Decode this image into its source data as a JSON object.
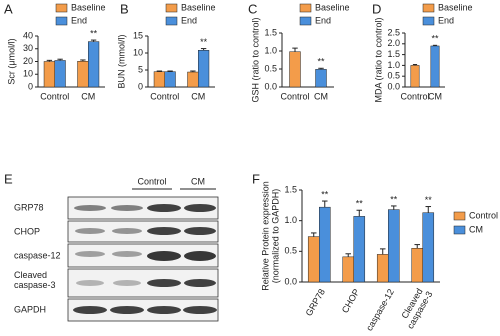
{
  "chart_data": [
    {
      "type": "bar",
      "panel": "A",
      "ylabel": "Scr (μmol/l)",
      "categories": [
        "Control",
        "CM"
      ],
      "series": [
        {
          "name": "Baseline",
          "color": "#f39c4a",
          "values": [
            20,
            20.2
          ],
          "errors": [
            0.9,
            1.0
          ]
        },
        {
          "name": "End",
          "color": "#4a8fdb",
          "values": [
            20.8,
            35.6
          ],
          "errors": [
            1.0,
            1.2
          ],
          "annotations": [
            null,
            "**"
          ]
        }
      ],
      "ylim": [
        0,
        40
      ],
      "yticks": [
        0,
        10,
        20,
        30,
        40
      ],
      "legend": "top"
    },
    {
      "type": "bar",
      "panel": "B",
      "ylabel": "BUN (mmol/l)",
      "categories": [
        "Control",
        "CM"
      ],
      "series": [
        {
          "name": "Baseline",
          "color": "#f39c4a",
          "values": [
            4.5,
            4.4
          ],
          "errors": [
            0.2,
            0.3
          ]
        },
        {
          "name": "End",
          "color": "#4a8fdb",
          "values": [
            4.5,
            10.8
          ],
          "errors": [
            0.2,
            0.5
          ],
          "annotations": [
            null,
            "**"
          ]
        }
      ],
      "ylim": [
        0,
        15
      ],
      "yticks": [
        0,
        5,
        10,
        15
      ],
      "legend": "top"
    },
    {
      "type": "bar",
      "panel": "C",
      "ylabel": "GSH (ratio to control)",
      "categories": [
        "Control",
        "CM"
      ],
      "series": [
        {
          "name": "Baseline",
          "color": "#f39c4a",
          "values": [
            0.98,
            null
          ],
          "errors": [
            0.1,
            null
          ]
        },
        {
          "name": "End",
          "color": "#4a8fdb",
          "values": [
            null,
            0.49
          ],
          "errors": [
            null,
            0.03
          ],
          "annotations": [
            null,
            "**"
          ]
        }
      ],
      "ylim": [
        0,
        1.5
      ],
      "yticks": [
        {
          "value": 0,
          "label": "0.0"
        },
        0.5,
        {
          "value": 1,
          "label": "1.0"
        },
        1.5
      ],
      "legend": "top"
    },
    {
      "type": "bar",
      "panel": "D",
      "ylabel": "MDA (ratio to control)",
      "categories": [
        "Control",
        "CM"
      ],
      "series": [
        {
          "name": "Baseline",
          "color": "#f39c4a",
          "values": [
            1.0,
            null
          ],
          "errors": [
            0.04,
            null
          ]
        },
        {
          "name": "End",
          "color": "#4a8fdb",
          "values": [
            null,
            1.9
          ],
          "errors": [
            null,
            0.03
          ],
          "annotations": [
            null,
            "**"
          ]
        }
      ],
      "ylim": [
        0,
        2.5
      ],
      "yticks": [
        {
          "value": 0,
          "label": "0.0"
        },
        0.5,
        {
          "value": 1,
          "label": "1.0"
        },
        1.5,
        {
          "value": 2,
          "label": "2.0"
        },
        2.5
      ],
      "legend": "top"
    },
    {
      "type": "bar",
      "panel": "F",
      "ylabel": [
        "Relative Protein expression",
        "(normalized to GAPDH)"
      ],
      "categories": [
        "GRP78",
        "CHOP",
        "caspase-12",
        "Cleaved caspase-3"
      ],
      "series": [
        {
          "name": "Control",
          "color": "#f39c4a",
          "values": [
            0.74,
            0.41,
            0.45,
            0.55
          ],
          "errors": [
            0.06,
            0.05,
            0.09,
            0.06
          ]
        },
        {
          "name": "CM",
          "color": "#4a8fdb",
          "values": [
            1.22,
            1.07,
            1.18,
            1.13
          ],
          "errors": [
            0.1,
            0.1,
            0.06,
            0.1
          ],
          "annotations": [
            "**",
            "**",
            "**",
            "**"
          ]
        }
      ],
      "ylim": [
        0,
        1.5
      ],
      "yticks": [
        {
          "value": 0,
          "label": "0.0"
        },
        0.5,
        {
          "value": 1,
          "label": "1.0"
        },
        1.5
      ],
      "legend": "right"
    }
  ],
  "blot": {
    "panel": "E",
    "lanes": [
      "Control",
      "CM"
    ],
    "rows": [
      "GRP78",
      "CHOP",
      "caspase-12",
      "Cleaved caspase-3",
      "GAPDH"
    ]
  }
}
